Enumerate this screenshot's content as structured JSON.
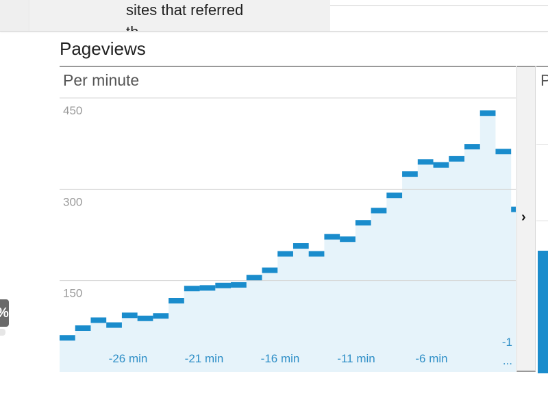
{
  "tooltip": {
    "line1": "sites that referred",
    "line2": "th..."
  },
  "pageviews": {
    "title": "Pageviews",
    "subtitle": "Per minute",
    "right_panel_label": "P"
  },
  "left_badge": {
    "text": "%"
  },
  "colors": {
    "accent": "#1a8ccc",
    "area_fill": "#e6f3fa",
    "gridline": "#d6d6d6"
  },
  "icons": {
    "scroll_next": "chevron-right-icon"
  },
  "chart_data": {
    "type": "area",
    "title": "",
    "xlabel": "",
    "ylabel": "",
    "ylim": [
      0,
      450
    ],
    "yticks": [
      150,
      300,
      450
    ],
    "ytick_labels": [
      "150",
      "300",
      "450"
    ],
    "grid": true,
    "x_minutes_ago": [
      -30,
      -29,
      -28,
      -27,
      -26,
      -25,
      -24,
      -23,
      -22,
      -21,
      -20,
      -19,
      -18,
      -17,
      -16,
      -15,
      -14,
      -13,
      -12,
      -11,
      -10,
      -9,
      -8,
      -7,
      -6,
      -5,
      -4,
      -3,
      -2,
      -1
    ],
    "x_tick_labels": [
      "-26 min",
      "-21 min",
      "-16 min",
      "-11 min",
      "-6 min",
      "-1 ..."
    ],
    "series": [
      {
        "values": [
          56,
          72,
          85,
          77,
          93,
          88,
          92,
          117,
          137,
          138,
          142,
          143,
          155,
          167,
          194,
          207,
          194,
          222,
          218,
          245,
          265,
          290,
          325,
          345,
          340,
          350,
          370,
          425,
          362,
          267
        ]
      }
    ]
  }
}
